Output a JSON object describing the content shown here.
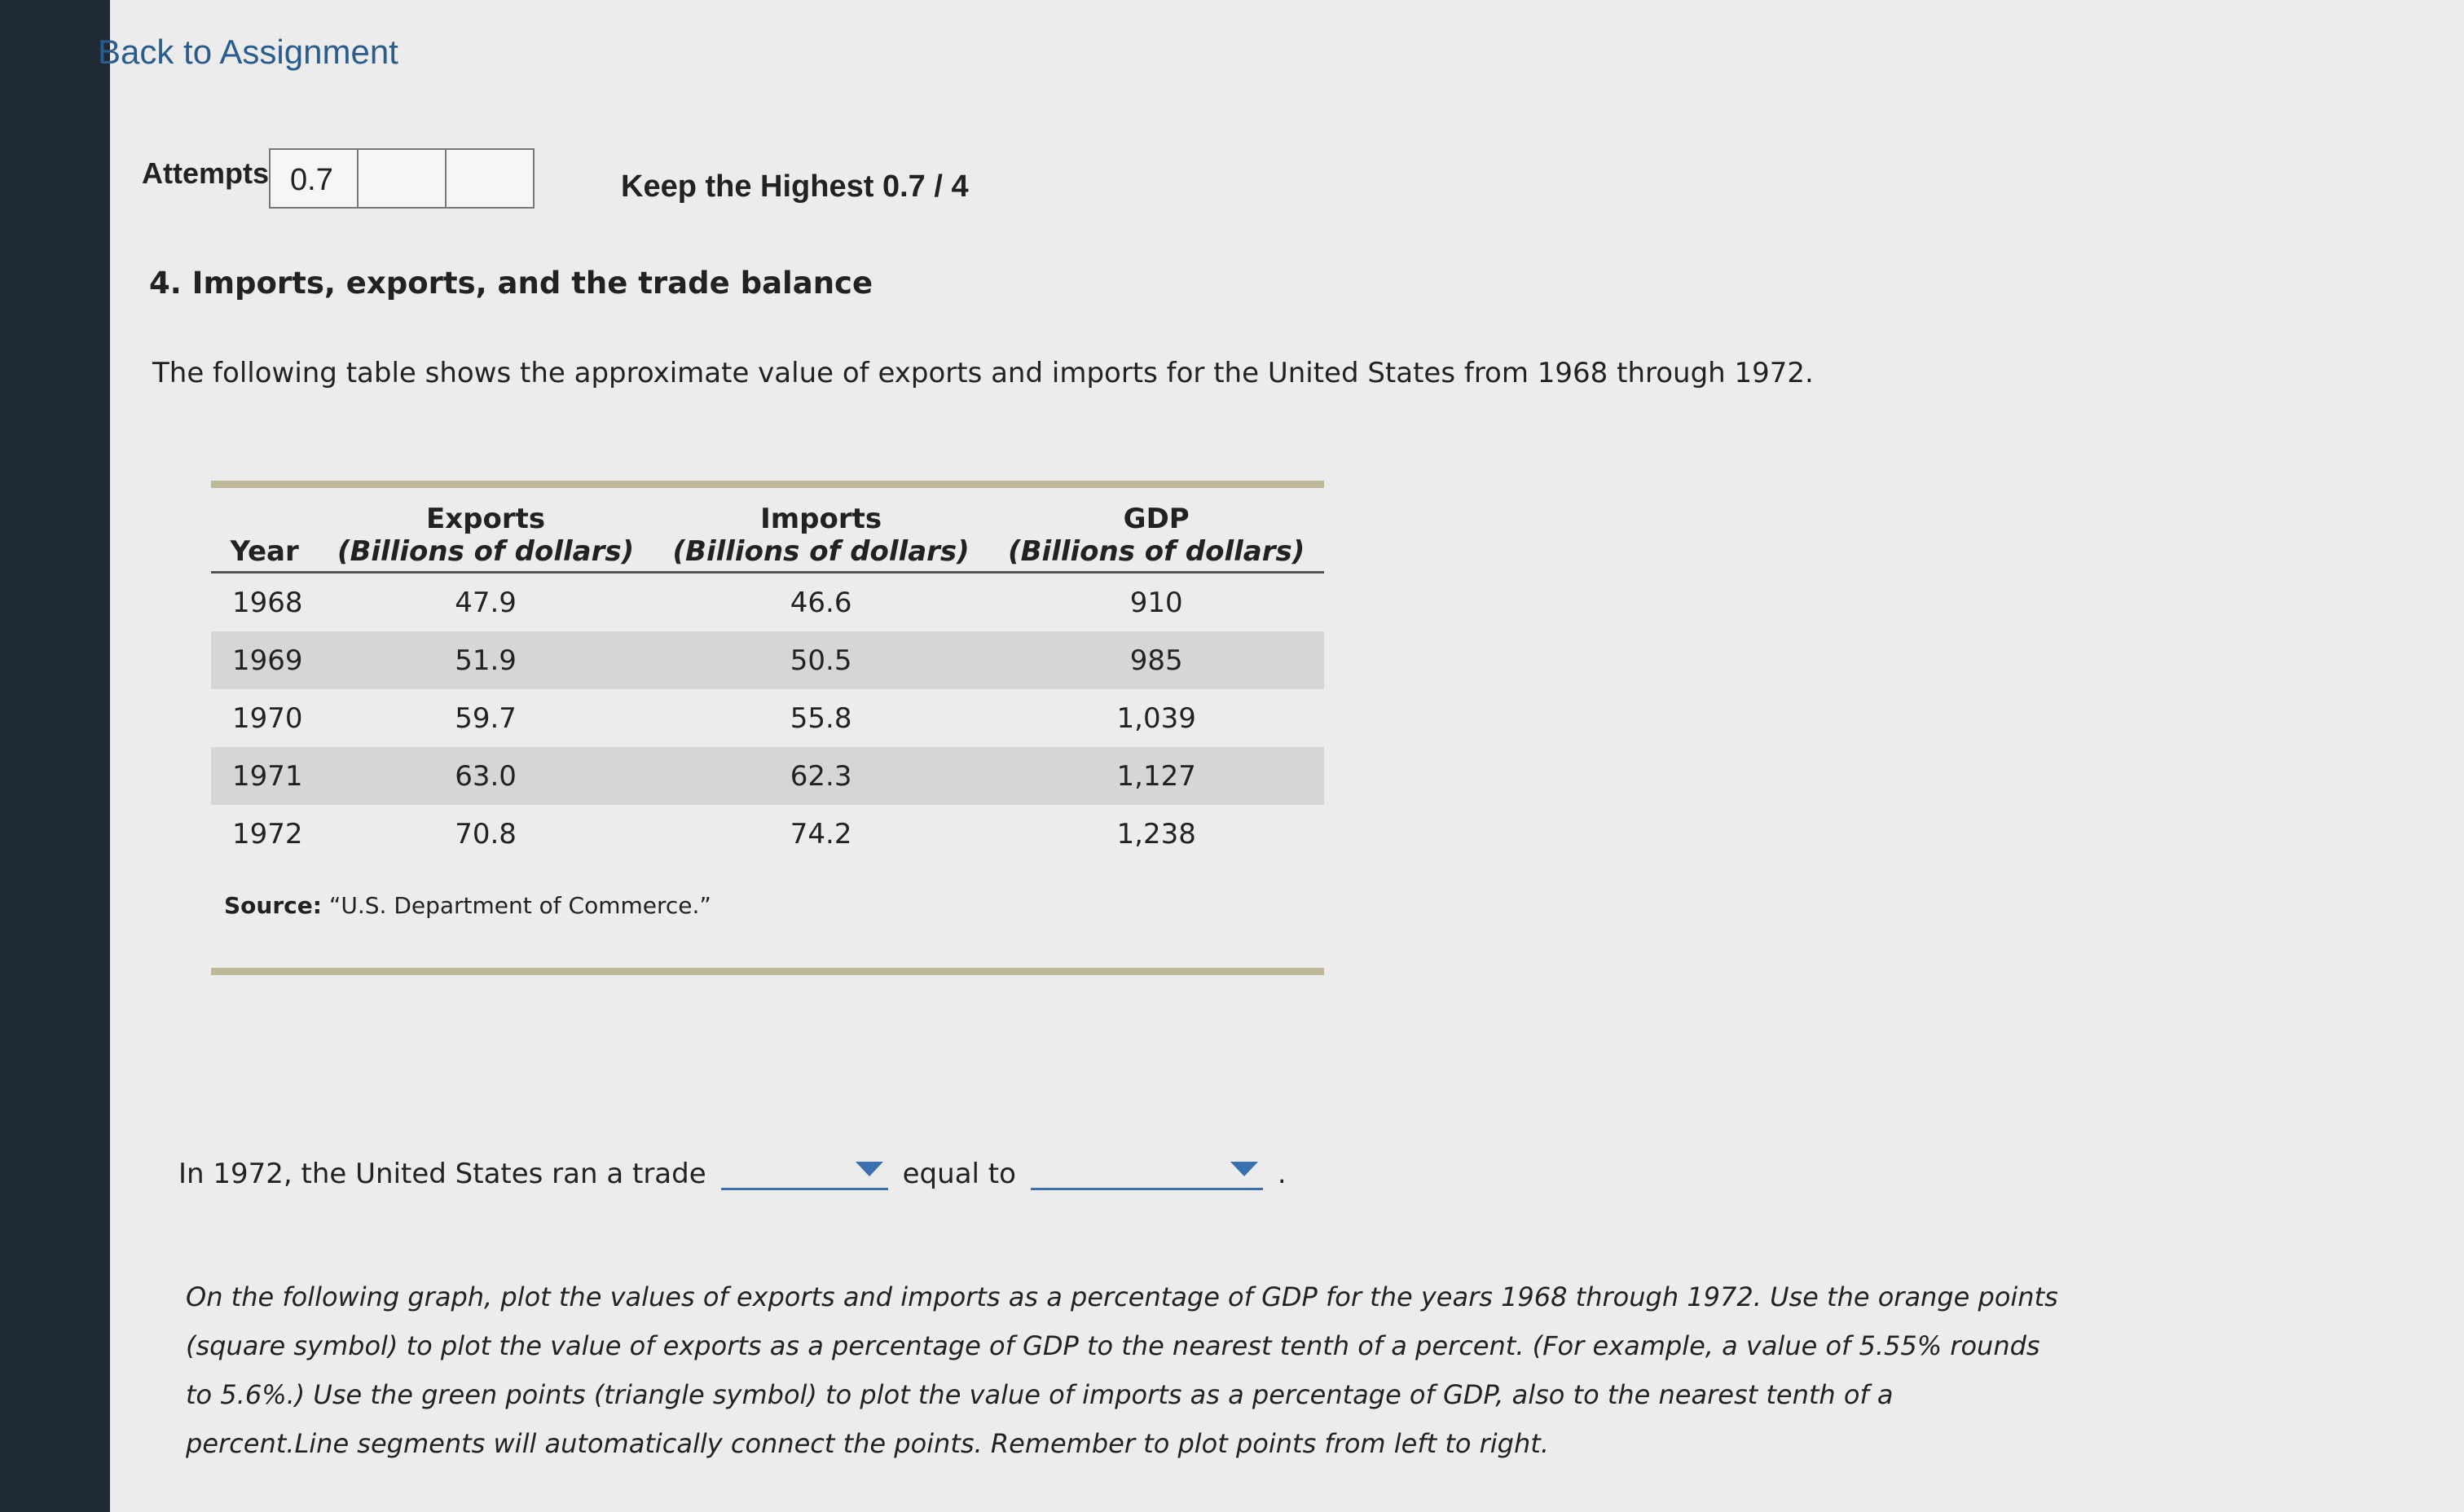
{
  "header": {
    "back_link": "Back to Assignment"
  },
  "attempts": {
    "label": "Attempts",
    "score": "0.7",
    "keep": "Keep the Highest 0.7 / 4"
  },
  "question": {
    "title": "4. Imports, exports, and the trade balance",
    "intro": "The following table shows the approximate value of exports and imports for the United States from 1968 through 1972."
  },
  "table": {
    "year_header": "Year",
    "columns": [
      {
        "name": "Exports",
        "unit": "(Billions of dollars)"
      },
      {
        "name": "Imports",
        "unit": "(Billions of dollars)"
      },
      {
        "name": "GDP",
        "unit": "(Billions of dollars)"
      }
    ],
    "rows": [
      [
        "1968",
        "47.9",
        "46.6",
        "910"
      ],
      [
        "1969",
        "51.9",
        "50.5",
        "985"
      ],
      [
        "1970",
        "59.7",
        "55.8",
        "1,039"
      ],
      [
        "1971",
        "63.0",
        "62.3",
        "1,127"
      ],
      [
        "1972",
        "70.8",
        "74.2",
        "1,238"
      ]
    ],
    "source_label": "Source:",
    "source": "“U.S. Department of Commerce.”"
  },
  "sentence": {
    "before": "In 1972, the United States ran a trade",
    "middle": "equal to",
    "end": "."
  },
  "instructions": "On the following graph, plot the values of exports and imports as a percentage of GDP for the years 1968 through 1972. Use the orange points (square symbol) to plot the value of exports as a percentage of GDP to the nearest tenth of a percent. (For example, a value of 5.55% rounds to 5.6%.) Use the green points (triangle symbol) to plot the value of imports as a percentage of GDP, also to the nearest tenth of a percent.Line segments will automatically connect the points. Remember to plot points from left to right."
}
